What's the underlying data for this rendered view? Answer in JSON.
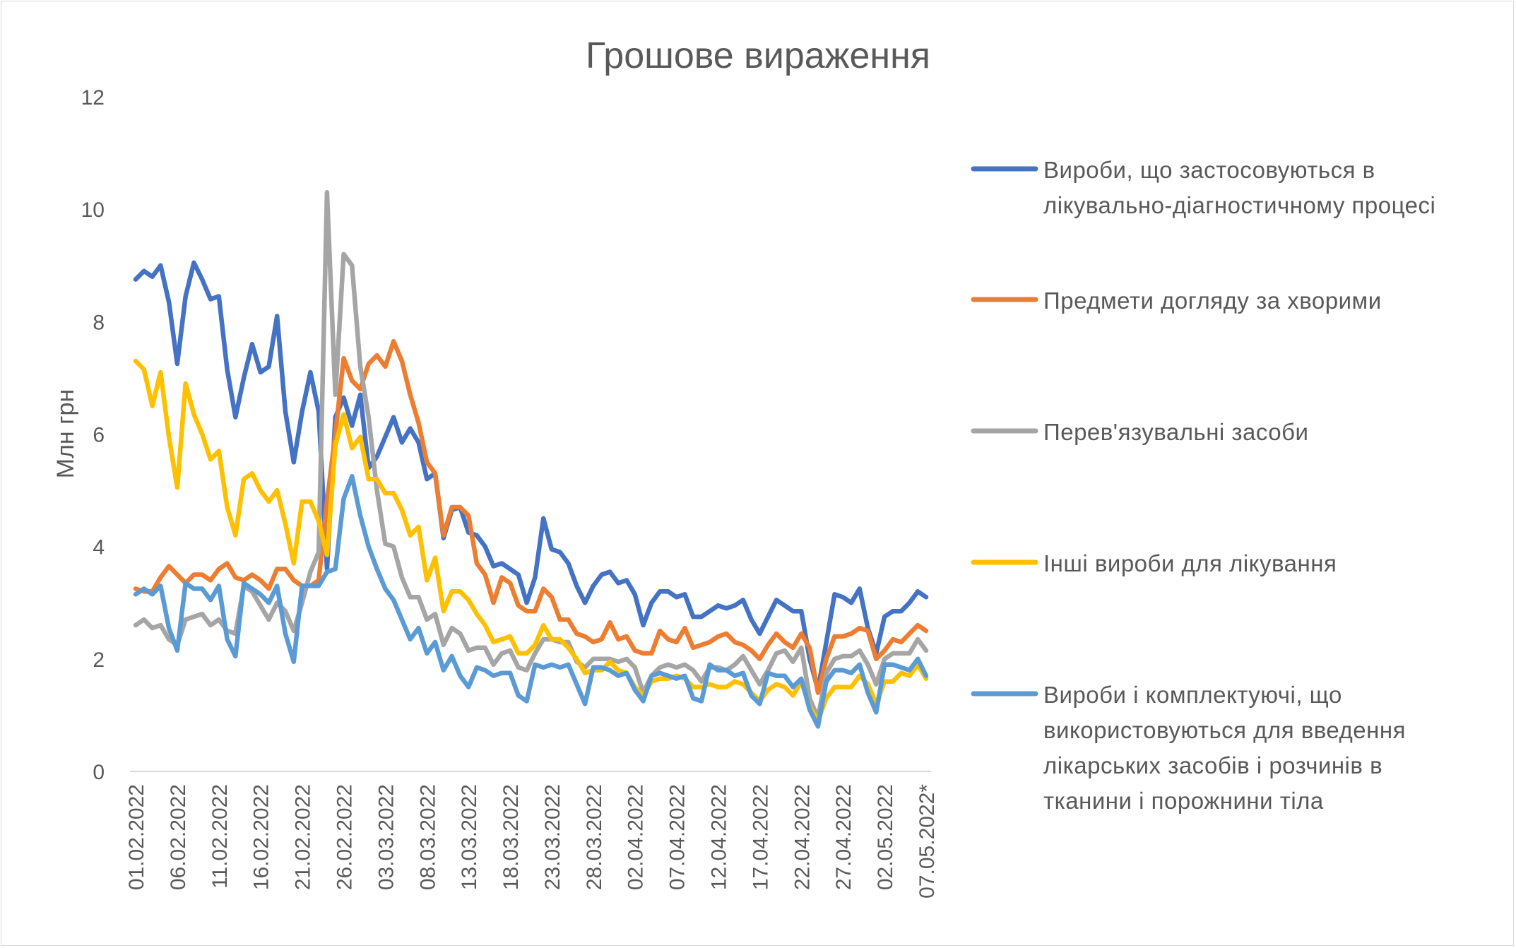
{
  "chart_data": {
    "type": "line",
    "title": "Грошове вираження",
    "xlabel": "",
    "ylabel": "Млн грн",
    "ylim": [
      0,
      12
    ],
    "y_ticks": [
      "0",
      "2",
      "4",
      "6",
      "8",
      "10",
      "12"
    ],
    "grid": false,
    "legend_position": "right",
    "categories": [
      "01.02.2022",
      "02.02.2022",
      "03.02.2022",
      "04.02.2022",
      "05.02.2022",
      "06.02.2022",
      "07.02.2022",
      "08.02.2022",
      "09.02.2022",
      "10.02.2022",
      "11.02.2022",
      "12.02.2022",
      "13.02.2022",
      "14.02.2022",
      "15.02.2022",
      "16.02.2022",
      "17.02.2022",
      "18.02.2022",
      "19.02.2022",
      "20.02.2022",
      "21.02.2022",
      "22.02.2022",
      "23.02.2022",
      "24.02.2022",
      "25.02.2022",
      "26.02.2022",
      "27.02.2022",
      "28.02.2022",
      "01.03.2022",
      "02.03.2022",
      "03.03.2022",
      "04.03.2022",
      "05.03.2022",
      "06.03.2022",
      "07.03.2022",
      "08.03.2022",
      "09.03.2022",
      "10.03.2022",
      "11.03.2022",
      "12.03.2022",
      "13.03.2022",
      "14.03.2022",
      "15.03.2022",
      "16.03.2022",
      "17.03.2022",
      "18.03.2022",
      "19.03.2022",
      "20.03.2022",
      "21.03.2022",
      "22.03.2022",
      "23.03.2022",
      "24.03.2022",
      "25.03.2022",
      "26.03.2022",
      "27.03.2022",
      "28.03.2022",
      "29.03.2022",
      "30.03.2022",
      "31.03.2022",
      "01.04.2022",
      "02.04.2022",
      "03.04.2022",
      "04.04.2022",
      "05.04.2022",
      "06.04.2022",
      "07.04.2022",
      "08.04.2022",
      "09.04.2022",
      "10.04.2022",
      "11.04.2022",
      "12.04.2022",
      "13.04.2022",
      "14.04.2022",
      "15.04.2022",
      "16.04.2022",
      "17.04.2022",
      "18.04.2022",
      "19.04.2022",
      "20.04.2022",
      "21.04.2022",
      "22.04.2022",
      "23.04.2022",
      "24.04.2022",
      "25.04.2022",
      "26.04.2022",
      "27.04.2022",
      "28.04.2022",
      "29.04.2022",
      "30.04.2022",
      "01.05.2022",
      "02.05.2022",
      "03.05.2022",
      "04.05.2022",
      "05.05.2022",
      "06.05.2022",
      "07.05.2022*"
    ],
    "x_tick_labels": [
      "01.02.2022",
      "06.02.2022",
      "11.02.2022",
      "16.02.2022",
      "21.02.2022",
      "26.02.2022",
      "03.03.2022",
      "08.03.2022",
      "13.03.2022",
      "18.03.2022",
      "23.03.2022",
      "28.03.2022",
      "02.04.2022",
      "07.04.2022",
      "12.04.2022",
      "17.04.2022",
      "22.04.2022",
      "27.04.2022",
      "02.05.2022",
      "07.05.2022*"
    ],
    "series": [
      {
        "name": "Вироби, що застосовуються в лікувально-діагностичному процесі",
        "legend_lines": [
          "Вироби, що застосовуються в",
          "лікувально-діагностичному процесі"
        ],
        "color": "#4472C4",
        "values": [
          8.75,
          8.9,
          8.8,
          9.0,
          8.35,
          7.25,
          8.45,
          9.05,
          8.75,
          8.4,
          8.45,
          7.15,
          6.3,
          7.0,
          7.6,
          7.1,
          7.2,
          8.1,
          6.4,
          5.5,
          6.4,
          7.1,
          6.4,
          3.6,
          6.3,
          6.65,
          6.15,
          6.7,
          5.4,
          5.6,
          5.95,
          6.3,
          5.85,
          6.1,
          5.85,
          5.2,
          5.3,
          4.15,
          4.65,
          4.7,
          4.25,
          4.2,
          4.0,
          3.65,
          3.7,
          3.6,
          3.5,
          3.0,
          3.45,
          4.5,
          3.95,
          3.9,
          3.7,
          3.3,
          3.0,
          3.3,
          3.5,
          3.55,
          3.35,
          3.4,
          3.15,
          2.6,
          3.0,
          3.2,
          3.2,
          3.1,
          3.15,
          2.75,
          2.75,
          2.85,
          2.95,
          2.9,
          2.95,
          3.05,
          2.7,
          2.45,
          2.75,
          3.05,
          2.95,
          2.85,
          2.85,
          2.0,
          1.45,
          2.3,
          3.15,
          3.1,
          3.0,
          3.25,
          2.55,
          2.1,
          2.75,
          2.85,
          2.85,
          3.0,
          3.2,
          3.1
        ]
      },
      {
        "name": "Предмети догляду за хворими",
        "legend_lines": [
          "Предмети догляду за хворими"
        ],
        "color": "#ED7D31",
        "values": [
          3.25,
          3.2,
          3.2,
          3.45,
          3.65,
          3.5,
          3.35,
          3.5,
          3.5,
          3.4,
          3.6,
          3.7,
          3.45,
          3.4,
          3.5,
          3.4,
          3.25,
          3.6,
          3.6,
          3.4,
          3.3,
          3.3,
          3.4,
          4.8,
          6.0,
          7.35,
          6.95,
          6.8,
          7.25,
          7.4,
          7.2,
          7.65,
          7.3,
          6.7,
          6.2,
          5.5,
          5.3,
          4.2,
          4.7,
          4.7,
          4.55,
          3.7,
          3.5,
          3.0,
          3.45,
          3.35,
          2.95,
          2.85,
          2.85,
          3.25,
          3.1,
          2.7,
          2.7,
          2.45,
          2.4,
          2.3,
          2.35,
          2.65,
          2.35,
          2.4,
          2.15,
          2.1,
          2.1,
          2.5,
          2.35,
          2.3,
          2.55,
          2.2,
          2.25,
          2.3,
          2.4,
          2.45,
          2.3,
          2.25,
          2.15,
          2.0,
          2.25,
          2.45,
          2.3,
          2.2,
          2.45,
          2.2,
          1.4,
          2.0,
          2.4,
          2.4,
          2.45,
          2.55,
          2.5,
          2.0,
          2.15,
          2.35,
          2.3,
          2.45,
          2.6,
          2.5
        ]
      },
      {
        "name": "Перев'язувальні засоби",
        "legend_lines": [
          "Перев'язувальні засоби"
        ],
        "color": "#A5A5A5",
        "values": [
          2.6,
          2.7,
          2.55,
          2.6,
          2.35,
          2.25,
          2.7,
          2.75,
          2.8,
          2.6,
          2.7,
          2.5,
          2.45,
          3.3,
          3.2,
          2.95,
          2.7,
          3.0,
          2.85,
          2.5,
          3.0,
          3.55,
          3.9,
          10.3,
          6.7,
          9.2,
          9.0,
          7.2,
          6.3,
          5.0,
          4.05,
          4.0,
          3.45,
          3.1,
          3.1,
          2.7,
          2.8,
          2.25,
          2.55,
          2.45,
          2.15,
          2.2,
          2.2,
          1.9,
          2.1,
          2.15,
          1.85,
          1.8,
          2.1,
          2.35,
          2.35,
          2.3,
          2.3,
          1.95,
          1.85,
          2.0,
          2.0,
          2.0,
          1.95,
          2.0,
          1.85,
          1.4,
          1.7,
          1.85,
          1.9,
          1.85,
          1.9,
          1.8,
          1.6,
          1.85,
          1.85,
          1.8,
          1.9,
          2.05,
          1.8,
          1.55,
          1.8,
          2.1,
          2.15,
          1.95,
          2.2,
          1.3,
          0.95,
          1.75,
          2.0,
          2.05,
          2.05,
          2.15,
          1.9,
          1.55,
          2.0,
          2.1,
          2.1,
          2.1,
          2.35,
          2.15
        ]
      },
      {
        "name": "Інші вироби для лікування",
        "legend_lines": [
          "Інші вироби для лікування"
        ],
        "color": "#FFC000",
        "values": [
          7.3,
          7.15,
          6.5,
          7.1,
          5.95,
          5.05,
          6.9,
          6.35,
          6.0,
          5.55,
          5.7,
          4.7,
          4.2,
          5.2,
          5.3,
          5.0,
          4.8,
          5.0,
          4.4,
          3.7,
          4.8,
          4.8,
          4.45,
          3.85,
          5.8,
          6.35,
          5.75,
          5.95,
          5.2,
          5.2,
          4.95,
          4.95,
          4.65,
          4.2,
          4.35,
          3.4,
          3.8,
          2.85,
          3.2,
          3.2,
          3.05,
          2.8,
          2.6,
          2.3,
          2.35,
          2.4,
          2.1,
          2.1,
          2.25,
          2.6,
          2.35,
          2.35,
          2.2,
          2.0,
          1.75,
          1.8,
          1.8,
          1.95,
          1.8,
          1.75,
          1.5,
          1.35,
          1.6,
          1.65,
          1.65,
          1.7,
          1.65,
          1.5,
          1.5,
          1.55,
          1.5,
          1.5,
          1.6,
          1.55,
          1.4,
          1.25,
          1.45,
          1.55,
          1.5,
          1.35,
          1.6,
          1.15,
          0.9,
          1.3,
          1.5,
          1.5,
          1.5,
          1.7,
          1.55,
          1.2,
          1.6,
          1.6,
          1.75,
          1.7,
          1.9,
          1.65
        ]
      },
      {
        "name": "Вироби і комплектуючі, що використовуються для введення лікарських засобів і розчинів в тканини і порожнини тіла",
        "legend_lines": [
          "Вироби і комплектуючі, що",
          "використовуються для введення",
          "лікарських засобів і розчинів в",
          "тканини і порожнини тіла"
        ],
        "color": "#5B9BD5",
        "values": [
          3.15,
          3.25,
          3.15,
          3.3,
          2.55,
          2.15,
          3.35,
          3.25,
          3.25,
          3.05,
          3.3,
          2.35,
          2.05,
          3.35,
          3.25,
          3.15,
          3.0,
          3.3,
          2.45,
          1.95,
          3.3,
          3.3,
          3.3,
          3.55,
          3.6,
          4.85,
          5.25,
          4.55,
          4.0,
          3.6,
          3.25,
          3.05,
          2.7,
          2.35,
          2.55,
          2.1,
          2.3,
          1.8,
          2.05,
          1.7,
          1.5,
          1.85,
          1.8,
          1.7,
          1.75,
          1.75,
          1.35,
          1.25,
          1.9,
          1.85,
          1.9,
          1.85,
          1.9,
          1.55,
          1.2,
          1.85,
          1.85,
          1.8,
          1.7,
          1.75,
          1.45,
          1.25,
          1.7,
          1.75,
          1.7,
          1.65,
          1.7,
          1.3,
          1.25,
          1.9,
          1.8,
          1.8,
          1.7,
          1.75,
          1.35,
          1.2,
          1.75,
          1.7,
          1.7,
          1.5,
          1.65,
          1.1,
          0.8,
          1.6,
          1.8,
          1.8,
          1.75,
          1.9,
          1.4,
          1.05,
          1.9,
          1.9,
          1.85,
          1.8,
          2.0,
          1.7
        ]
      }
    ]
  }
}
